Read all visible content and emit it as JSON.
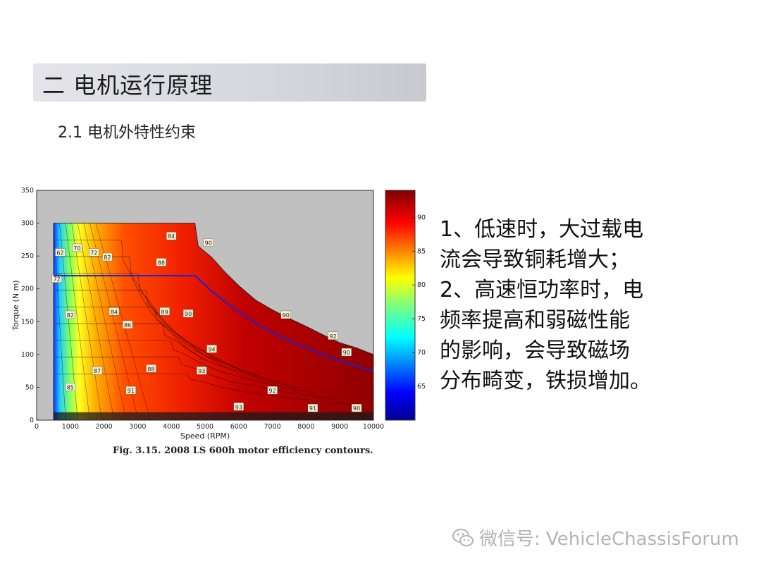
{
  "slide": {
    "title": "二 电机运行原理",
    "subtitle": "2.1  电机外特性约束",
    "caption": "Fig. 3.15. 2008 LS 600h motor efficiency contours.",
    "body_lines": [
      "1、低速时，大过载电",
      "流会导致铜耗增大；",
      "2、高速恒功率时，电",
      "频率提高和弱磁性能",
      "的影响，会导致磁场",
      "分布畸变，铁损增加。"
    ],
    "watermark": "微信号: VehicleChassisForum",
    "watermark_icon": "wechat-icon"
  },
  "chart_data": {
    "type": "heatmap",
    "title": "",
    "xlabel": "Speed (RPM)",
    "ylabel": "Torque (N m)",
    "xlim": [
      0,
      10000
    ],
    "ylim": [
      0,
      350
    ],
    "x_ticks": [
      0,
      1000,
      2000,
      3000,
      4000,
      5000,
      6000,
      7000,
      8000,
      9000,
      10000
    ],
    "y_ticks": [
      0,
      50,
      100,
      150,
      200,
      250,
      300,
      350
    ],
    "colorbar": {
      "min": 60,
      "max": 94,
      "ticks": [
        65,
        70,
        75,
        80,
        85,
        90
      ]
    },
    "max_torque_envelope": {
      "speed": [
        500,
        4700,
        4800,
        5200,
        5600,
        6000,
        6500,
        7000,
        7500,
        8000,
        8500,
        9000,
        9500,
        10000
      ],
      "torque": [
        300,
        300,
        265,
        248,
        225,
        205,
        183,
        168,
        155,
        143,
        130,
        118,
        110,
        100
      ]
    },
    "constraint_line": {
      "speed": [
        500,
        4700,
        5200,
        5800,
        6500,
        7200,
        8000,
        8800,
        9500,
        10000
      ],
      "torque": [
        220,
        220,
        196,
        172,
        148,
        128,
        110,
        94,
        82,
        75
      ]
    },
    "contour_labels": [
      {
        "x": 700,
        "y": 255,
        "text": "62"
      },
      {
        "x": 1200,
        "y": 262,
        "text": "70"
      },
      {
        "x": 1700,
        "y": 255,
        "text": "72"
      },
      {
        "x": 2100,
        "y": 248,
        "text": "82"
      },
      {
        "x": 600,
        "y": 215,
        "text": "72"
      },
      {
        "x": 1000,
        "y": 160,
        "text": "82"
      },
      {
        "x": 2300,
        "y": 165,
        "text": "84"
      },
      {
        "x": 2700,
        "y": 145,
        "text": "86"
      },
      {
        "x": 3700,
        "y": 240,
        "text": "88"
      },
      {
        "x": 4000,
        "y": 280,
        "text": "84"
      },
      {
        "x": 3800,
        "y": 165,
        "text": "89"
      },
      {
        "x": 4500,
        "y": 162,
        "text": "90"
      },
      {
        "x": 1800,
        "y": 75,
        "text": "87"
      },
      {
        "x": 3400,
        "y": 78,
        "text": "88"
      },
      {
        "x": 1000,
        "y": 50,
        "text": "85"
      },
      {
        "x": 2800,
        "y": 45,
        "text": "91"
      },
      {
        "x": 4900,
        "y": 75,
        "text": "93"
      },
      {
        "x": 5200,
        "y": 108,
        "text": "94"
      },
      {
        "x": 5100,
        "y": 270,
        "text": "90"
      },
      {
        "x": 7400,
        "y": 160,
        "text": "90"
      },
      {
        "x": 8800,
        "y": 128,
        "text": "92"
      },
      {
        "x": 9200,
        "y": 103,
        "text": "90"
      },
      {
        "x": 6000,
        "y": 20,
        "text": "93"
      },
      {
        "x": 7000,
        "y": 45,
        "text": "92"
      },
      {
        "x": 8200,
        "y": 18,
        "text": "91"
      },
      {
        "x": 9500,
        "y": 18,
        "text": "90"
      }
    ]
  }
}
